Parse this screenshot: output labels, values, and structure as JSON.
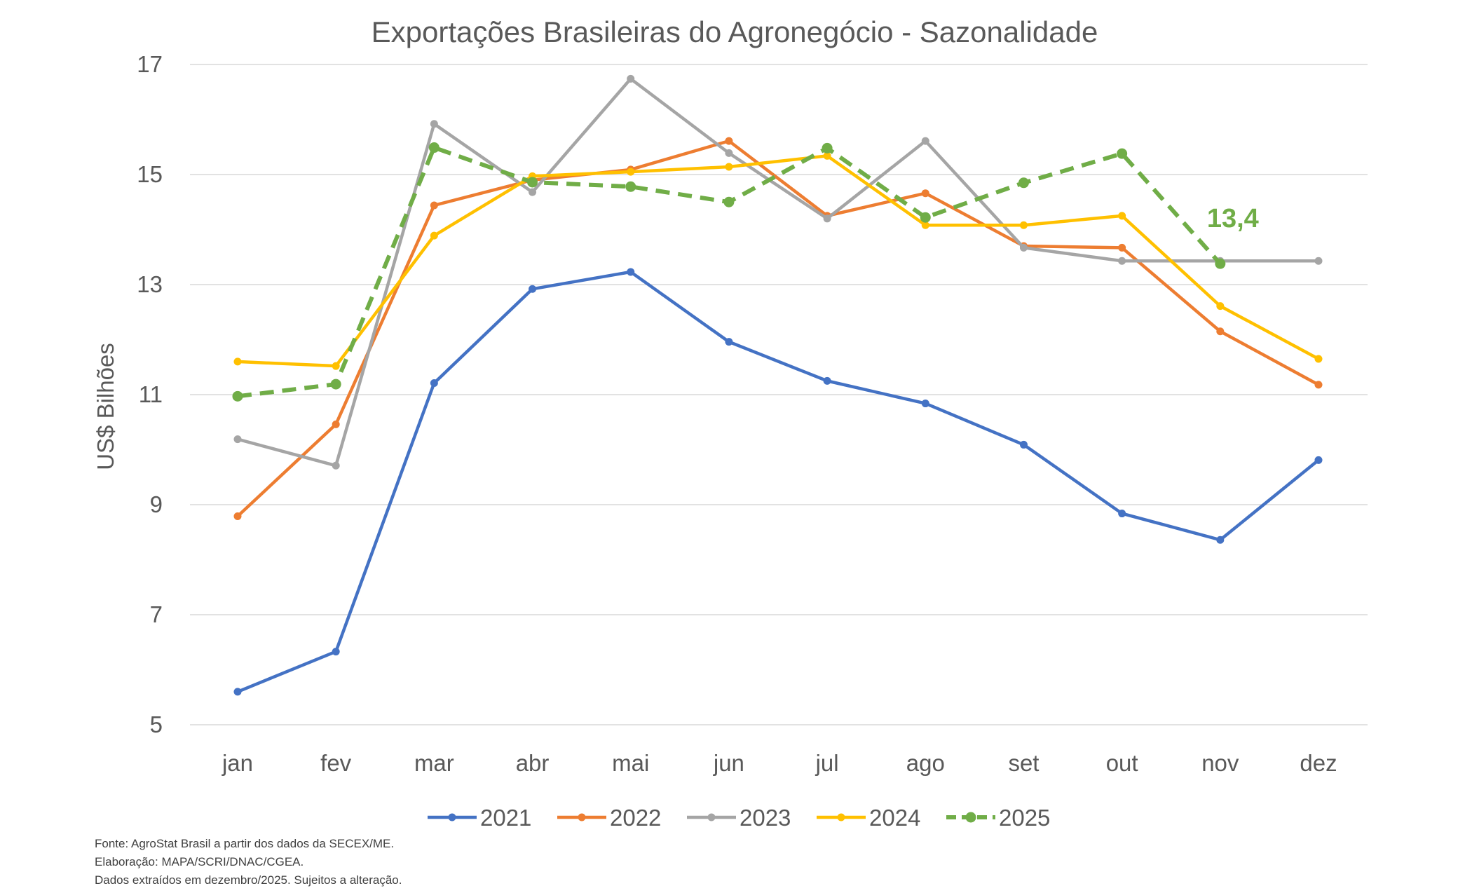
{
  "chart_data": {
    "type": "line",
    "title": "Exportações Brasileiras do Agronegócio - Sazonalidade",
    "xlabel": "",
    "ylabel": "US$ Bilhões",
    "ylim": [
      5,
      17
    ],
    "yticks": [
      "5",
      "7",
      "9",
      "11",
      "13",
      "15",
      "17"
    ],
    "grid": true,
    "legend_position": "bottom",
    "categories": [
      "jan",
      "fev",
      "mar",
      "abr",
      "mai",
      "jun",
      "jul",
      "ago",
      "set",
      "out",
      "nov",
      "dez"
    ],
    "series": [
      {
        "name": "2021",
        "color": "#4472C4",
        "dashed": false,
        "values": [
          5.6,
          6.33,
          11.21,
          12.92,
          13.23,
          11.96,
          11.25,
          10.84,
          10.09,
          8.84,
          8.36,
          9.81
        ]
      },
      {
        "name": "2022",
        "color": "#ED7D31",
        "dashed": false,
        "values": [
          8.79,
          10.46,
          14.44,
          14.9,
          15.09,
          15.61,
          14.25,
          14.66,
          13.7,
          13.67,
          12.15,
          11.18
        ]
      },
      {
        "name": "2023",
        "color": "#A5A5A5",
        "dashed": false,
        "values": [
          10.19,
          9.71,
          15.92,
          14.68,
          16.74,
          15.39,
          14.2,
          15.61,
          13.67,
          13.43,
          13.43,
          13.43
        ]
      },
      {
        "name": "2024",
        "color": "#FFC000",
        "dashed": false,
        "values": [
          11.6,
          11.52,
          13.89,
          14.97,
          15.05,
          15.14,
          15.34,
          14.08,
          14.08,
          14.25,
          12.61,
          11.65
        ]
      },
      {
        "name": "2025",
        "color": "#70AD47",
        "dashed": true,
        "values": [
          10.97,
          11.19,
          15.49,
          14.86,
          14.78,
          14.5,
          15.48,
          14.22,
          14.85,
          15.38,
          13.38,
          null
        ]
      }
    ],
    "annotations": [
      {
        "series": "2025",
        "category": "nov",
        "text": "13,4"
      }
    ]
  },
  "footer": {
    "lines": [
      "Fonte: AgroStat Brasil a partir dos dados da SECEX/ME.",
      "Elaboração: MAPA/SCRI/DNAC/CGEA.",
      "Dados extraídos em dezembro/2025. Sujeitos a alteração."
    ]
  }
}
